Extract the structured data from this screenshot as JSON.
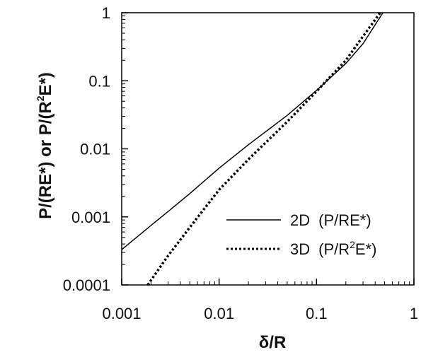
{
  "chart_data": {
    "type": "line",
    "xscale": "log",
    "yscale": "log",
    "xlim": [
      0.001,
      1
    ],
    "ylim": [
      0.0001,
      1
    ],
    "grid": false,
    "legend_position": "bottom-right",
    "xlabel": "δ/R",
    "ylabel": {
      "a": "P/(RE*) or P/(R",
      "sup": "2",
      "b": "E*)"
    },
    "xticks": [
      {
        "value": 0.001,
        "label": "0.001"
      },
      {
        "value": 0.01,
        "label": "0.01"
      },
      {
        "value": 0.1,
        "label": "0.1"
      },
      {
        "value": 1,
        "label": "1"
      }
    ],
    "yticks": [
      {
        "value": 0.0001,
        "label": "0.0001"
      },
      {
        "value": 0.001,
        "label": "0.001"
      },
      {
        "value": 0.01,
        "label": "0.01"
      },
      {
        "value": 0.1,
        "label": "0.1"
      },
      {
        "value": 1,
        "label": "1"
      }
    ],
    "series": [
      {
        "legend": {
          "a": "2D",
          "b": "(P/RE*)"
        },
        "style": "solid",
        "x": [
          0.001,
          0.002,
          0.003,
          0.005,
          0.01,
          0.02,
          0.05,
          0.1,
          0.2,
          0.3,
          0.48
        ],
        "y": [
          0.00033,
          0.00075,
          0.0012,
          0.0022,
          0.0052,
          0.0115,
          0.031,
          0.072,
          0.18,
          0.35,
          1.0
        ]
      },
      {
        "legend": {
          "a": "3D",
          "b": "(P/R",
          "sup": "2",
          "c": "E*)"
        },
        "style": "dotted",
        "x": [
          0.00185,
          0.003,
          0.005,
          0.007,
          0.01,
          0.02,
          0.05,
          0.1,
          0.2,
          0.3,
          0.45
        ],
        "y": [
          0.0001,
          0.00027,
          0.0007,
          0.0013,
          0.0025,
          0.007,
          0.025,
          0.07,
          0.2,
          0.45,
          1.0
        ]
      }
    ]
  }
}
